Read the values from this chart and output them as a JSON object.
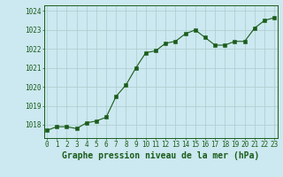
{
  "x": [
    0,
    1,
    2,
    3,
    4,
    5,
    6,
    7,
    8,
    9,
    10,
    11,
    12,
    13,
    14,
    15,
    16,
    17,
    18,
    19,
    20,
    21,
    22,
    23
  ],
  "y": [
    1017.7,
    1017.9,
    1017.9,
    1017.8,
    1018.1,
    1018.2,
    1018.4,
    1019.5,
    1020.1,
    1021.0,
    1021.8,
    1021.9,
    1022.3,
    1022.4,
    1022.8,
    1023.0,
    1022.6,
    1022.2,
    1022.2,
    1022.4,
    1022.4,
    1023.1,
    1023.5,
    1023.65
  ],
  "line_color": "#1a5c1a",
  "marker_color": "#1a5c1a",
  "bg_color": "#cce8f0",
  "grid_color": "#aacccc",
  "title": "Graphe pression niveau de la mer (hPa)",
  "ylim_min": 1017.3,
  "ylim_max": 1024.3,
  "xlim_min": -0.3,
  "xlim_max": 23.3,
  "yticks": [
    1018,
    1019,
    1020,
    1021,
    1022,
    1023,
    1024
  ],
  "xticks": [
    0,
    1,
    2,
    3,
    4,
    5,
    6,
    7,
    8,
    9,
    10,
    11,
    12,
    13,
    14,
    15,
    16,
    17,
    18,
    19,
    20,
    21,
    22,
    23
  ],
  "title_fontsize": 7.0,
  "tick_fontsize": 5.5,
  "axis_color": "#1a5c1a",
  "title_color": "#1a5c1a"
}
